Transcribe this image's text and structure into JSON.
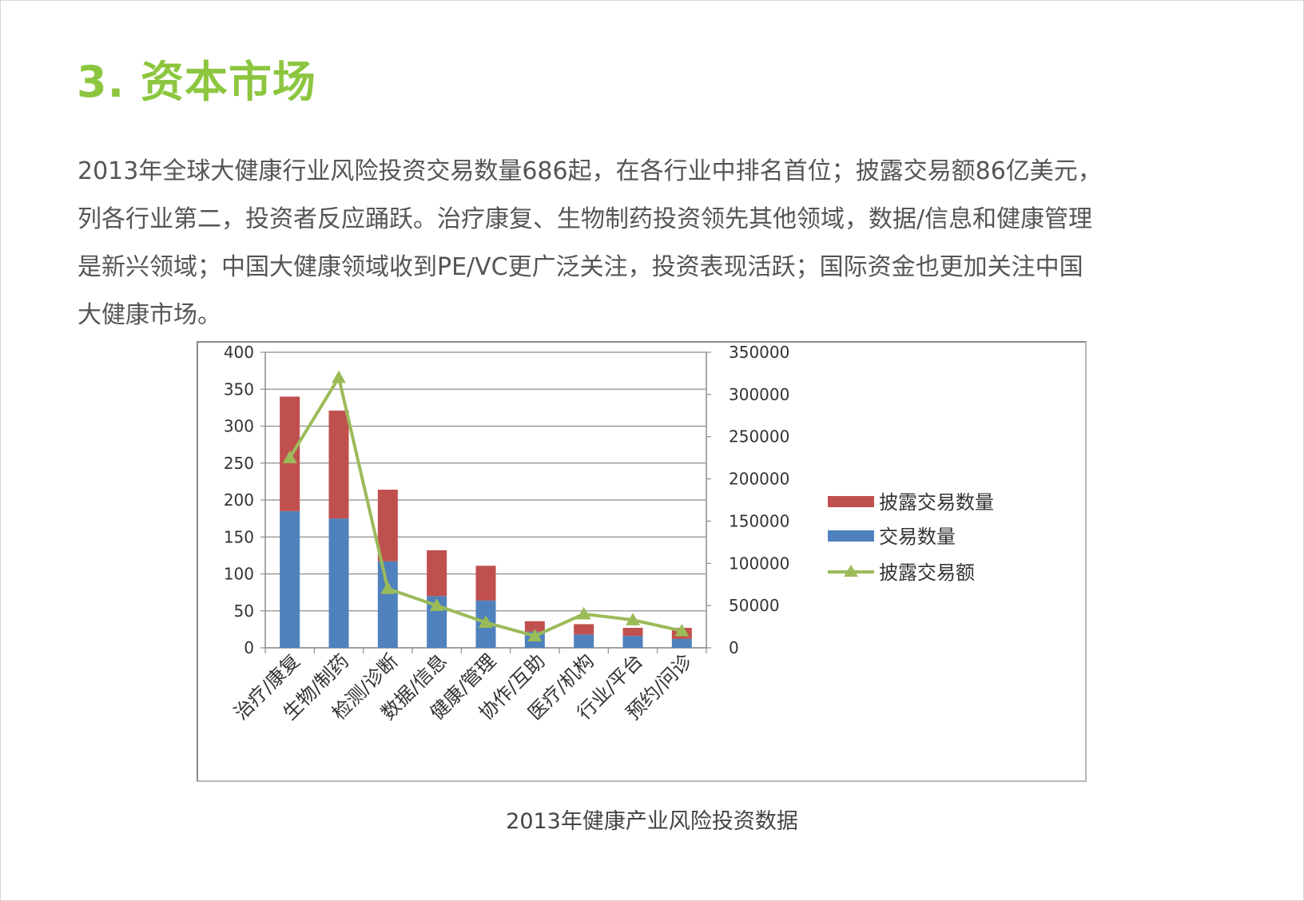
{
  "page": {
    "title": "3. 资本市场",
    "paragraph_lines": [
      "2013年全球大健康行业风险投资交易数量686起，在各行业中排名首位；披露交易额86亿美元，",
      "列各行业第二，投资者反应踊跃。治疗康复、生物制药投资领先其他领域，数据/信息和健康管理",
      "是新兴领域；中国大健康领域收到PE/VC更广泛关注，投资表现活跃；国际资金也更加关注中国",
      "大健康市场。"
    ],
    "caption": "2013年健康产业风险投资数据"
  },
  "colors": {
    "title": "#8cc63f",
    "text": "#555555",
    "series_disclosed_count": "#c0504d",
    "series_count": "#4f81bd",
    "series_amount": "#9bbb59"
  },
  "chart_data": {
    "type": "bar",
    "stacked": true,
    "categories": [
      "治疗/康复",
      "生物/制药",
      "检测/诊断",
      "数据/信息",
      "健康/管理",
      "协作/互助",
      "医疗/机构",
      "行业/平台",
      "预约/问诊"
    ],
    "series": [
      {
        "name": "交易数量",
        "type": "bar",
        "axis": "left",
        "values": [
          185,
          175,
          117,
          70,
          64,
          22,
          18,
          16,
          12
        ]
      },
      {
        "name": "披露交易数量",
        "type": "bar",
        "axis": "left",
        "values": [
          155,
          146,
          97,
          62,
          47,
          14,
          14,
          11,
          15
        ]
      },
      {
        "name": "披露交易额",
        "type": "line",
        "axis": "right",
        "marker": "triangle",
        "values": [
          225000,
          320000,
          70000,
          50000,
          30000,
          14000,
          40000,
          33000,
          20000
        ]
      }
    ],
    "y_left": {
      "min": 0,
      "max": 400,
      "ticks": [
        "0",
        "50",
        "100",
        "150",
        "200",
        "250",
        "300",
        "350",
        "400"
      ]
    },
    "y_right": {
      "min": 0,
      "max": 350000,
      "ticks": [
        "0",
        "50000",
        "100000",
        "150000",
        "200000",
        "250000",
        "300000",
        "350000"
      ]
    },
    "legend": {
      "placement": "right",
      "items": [
        {
          "label": "披露交易数量",
          "series": "披露交易数量"
        },
        {
          "label": "交易数量",
          "series": "交易数量"
        },
        {
          "label": "披露交易额",
          "series": "披露交易额"
        }
      ]
    },
    "grid": true
  }
}
